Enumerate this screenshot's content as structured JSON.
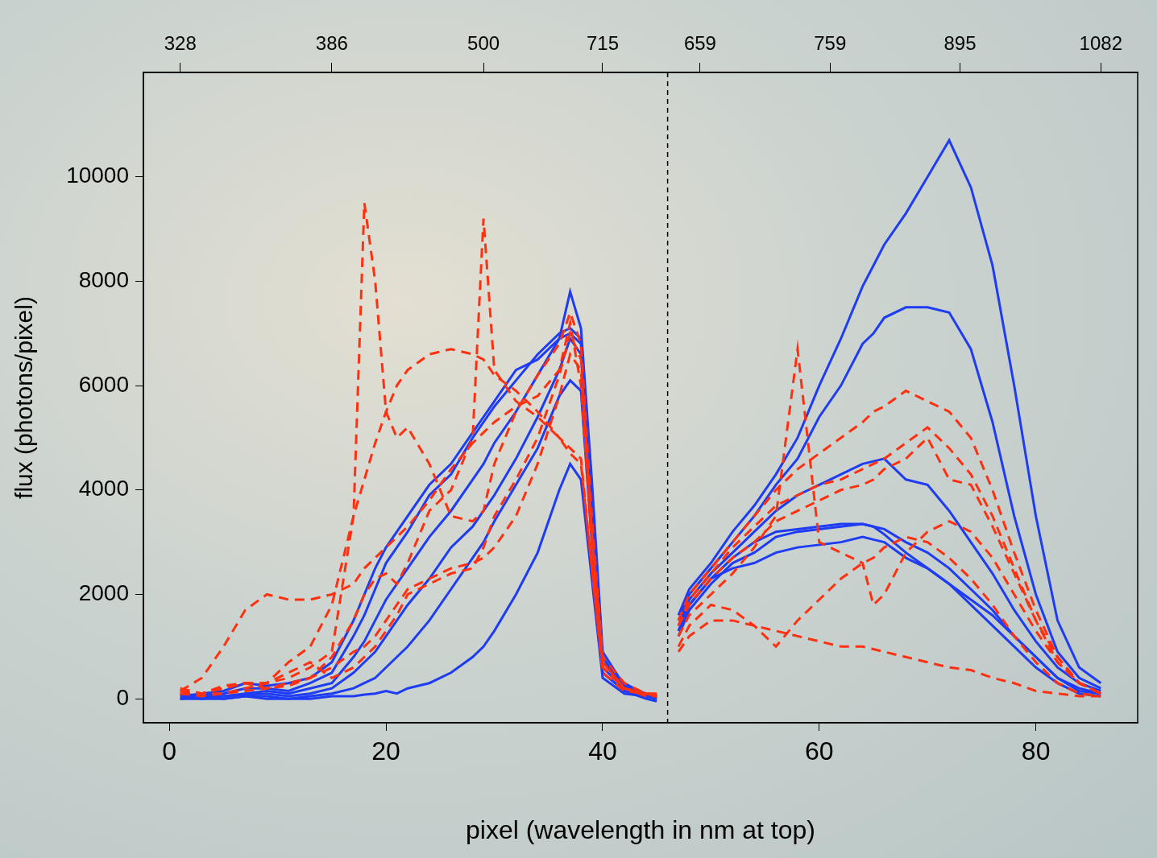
{
  "chart_data": {
    "type": "line",
    "x_label": "pixel (wavelength in nm at top)",
    "y_label": "flux (photons/pixel)",
    "x": [
      1,
      3,
      5,
      7,
      9,
      11,
      13,
      15,
      17,
      18,
      19,
      20,
      21,
      22,
      24,
      26,
      28,
      29,
      30,
      32,
      34,
      36,
      37,
      38,
      39,
      40,
      42,
      44,
      45,
      46,
      47,
      48,
      50,
      52,
      54,
      56,
      58,
      60,
      62,
      64,
      65,
      66,
      68,
      70,
      72,
      74,
      76,
      78,
      80,
      82,
      84,
      86
    ],
    "xlim": [
      -2.4,
      89.4
    ],
    "xticks": [
      0,
      20,
      40,
      60,
      80
    ],
    "x2lim": [
      -2.4,
      89.4
    ],
    "x2ticks": [
      {
        "value": 1,
        "label": "328"
      },
      {
        "value": 15,
        "label": "386"
      },
      {
        "value": 29,
        "label": "500"
      },
      {
        "value": 40,
        "label": "715"
      },
      {
        "value": 49,
        "label": "659"
      },
      {
        "value": 61,
        "label": "759"
      },
      {
        "value": 73,
        "label": "895"
      },
      {
        "value": 86,
        "label": "1082"
      }
    ],
    "ylim": [
      -460,
      12000
    ],
    "yticks": [
      0,
      2000,
      4000,
      6000,
      8000,
      10000
    ],
    "grid": false,
    "vline": 46,
    "series": [
      {
        "color": "#ff3010",
        "line_style": "dashed",
        "values": [
          100,
          100,
          200,
          300,
          300,
          400,
          600,
          900,
          3500,
          9500,
          8000,
          5500,
          5000,
          5200,
          4500,
          3500,
          3400,
          3600,
          4500,
          5500,
          6200,
          6800,
          7400,
          6800,
          3500,
          800,
          300,
          100,
          100,
          null,
          1200,
          1600,
          2000,
          2400,
          2900,
          3500,
          6700,
          3000,
          2800,
          2600,
          1800,
          2000,
          2800,
          3200,
          3400,
          3200,
          2700,
          2000,
          1300,
          700,
          300,
          100
        ]
      },
      {
        "color": "#ff3010",
        "line_style": "dashed",
        "values": [
          200,
          100,
          250,
          300,
          200,
          250,
          400,
          800,
          1500,
          2000,
          2300,
          2400,
          2200,
          2600,
          3600,
          4000,
          5000,
          9200,
          6300,
          5700,
          5400,
          5000,
          4700,
          4500,
          2500,
          500,
          150,
          100,
          50,
          null,
          1500,
          2000,
          2500,
          3000,
          3500,
          4000,
          4400,
          4700,
          5000,
          5300,
          5500,
          5600,
          5900,
          5700,
          5500,
          5000,
          4000,
          2800,
          1700,
          800,
          300,
          100
        ]
      },
      {
        "color": "#ff3010",
        "line_style": "dashed",
        "values": [
          100,
          100,
          200,
          300,
          300,
          700,
          1000,
          1800,
          3500,
          4200,
          4900,
          5500,
          6000,
          6300,
          6600,
          6700,
          6600,
          6500,
          6200,
          5900,
          5500,
          5000,
          4800,
          4600,
          2500,
          600,
          200,
          100,
          50,
          null,
          1400,
          1900,
          2400,
          2900,
          3300,
          3700,
          3900,
          4100,
          4200,
          4400,
          4500,
          4600,
          4900,
          5200,
          4800,
          4300,
          3500,
          2500,
          1500,
          700,
          300,
          100
        ]
      },
      {
        "color": "#ff3010",
        "line_style": "dashed",
        "values": [
          150,
          400,
          1000,
          1700,
          2000,
          1900,
          1900,
          2000,
          2200,
          2500,
          2700,
          2900,
          3100,
          3300,
          3800,
          4400,
          4900,
          5100,
          5300,
          5600,
          5800,
          6300,
          7200,
          6000,
          3000,
          700,
          200,
          100,
          80,
          null,
          1400,
          1800,
          2300,
          2700,
          3000,
          3400,
          3600,
          3800,
          4000,
          4100,
          4200,
          4400,
          4600,
          5000,
          4200,
          4100,
          3300,
          2400,
          1500,
          800,
          300,
          100
        ]
      },
      {
        "color": "#ff3010",
        "line_style": "dashed",
        "values": [
          100,
          50,
          100,
          200,
          300,
          500,
          700,
          400,
          600,
          800,
          1000,
          1300,
          1600,
          2000,
          2200,
          2400,
          2500,
          2900,
          3500,
          4200,
          5000,
          6200,
          7000,
          6500,
          3200,
          700,
          200,
          80,
          50,
          null,
          900,
          1200,
          1500,
          1500,
          1400,
          1300,
          1200,
          1100,
          1000,
          1000,
          950,
          900,
          800,
          700,
          600,
          550,
          400,
          300,
          150,
          100,
          50,
          50
        ]
      },
      {
        "color": "#ff3010",
        "line_style": "dashed",
        "values": [
          150,
          100,
          100,
          150,
          200,
          300,
          400,
          600,
          900,
          1000,
          1200,
          1500,
          1800,
          2100,
          2300,
          2500,
          2600,
          2700,
          2900,
          3500,
          4500,
          5800,
          6600,
          6300,
          3000,
          600,
          200,
          50,
          50,
          null,
          1000,
          1400,
          1800,
          1700,
          1400,
          1000,
          1500,
          1900,
          2300,
          2600,
          2700,
          2900,
          3100,
          3000,
          2700,
          2300,
          1800,
          1200,
          700,
          300,
          100,
          50
        ]
      },
      {
        "color": "#1f3cf5",
        "line_style": "solid",
        "values": [
          50,
          100,
          150,
          300,
          250,
          300,
          400,
          700,
          1500,
          2000,
          2500,
          2900,
          3200,
          3500,
          4100,
          4500,
          5100,
          5400,
          5700,
          6300,
          6500,
          6900,
          7800,
          7100,
          4200,
          900,
          250,
          100,
          80,
          null,
          1600,
          2100,
          2600,
          3200,
          3700,
          4300,
          5000,
          6000,
          6900,
          7900,
          8300,
          8700,
          9300,
          10000,
          10700,
          9800,
          8300,
          6000,
          3500,
          1500,
          600,
          300
        ]
      },
      {
        "color": "#1f3cf5",
        "line_style": "solid",
        "values": [
          80,
          50,
          100,
          200,
          200,
          150,
          300,
          500,
          1200,
          1600,
          2100,
          2600,
          2900,
          3200,
          3900,
          4300,
          5000,
          5300,
          5600,
          6100,
          6600,
          7000,
          7100,
          6900,
          4000,
          800,
          200,
          50,
          30,
          null,
          1500,
          2000,
          2500,
          3000,
          3500,
          4100,
          4600,
          5400,
          6000,
          6800,
          7000,
          7300,
          7500,
          7500,
          7400,
          6700,
          5300,
          3500,
          2000,
          900,
          400,
          200
        ]
      },
      {
        "color": "#1f3cf5",
        "line_style": "solid",
        "values": [
          0,
          80,
          50,
          100,
          150,
          100,
          200,
          300,
          800,
          1100,
          1500,
          1900,
          2200,
          2500,
          3100,
          3600,
          4200,
          4500,
          4900,
          5500,
          6200,
          6900,
          7000,
          6800,
          3800,
          700,
          300,
          80,
          50,
          null,
          1400,
          1900,
          2400,
          2800,
          3200,
          3600,
          3900,
          4100,
          4300,
          4500,
          4550,
          4600,
          4200,
          4100,
          3600,
          3000,
          2400,
          1700,
          1100,
          600,
          300,
          150
        ]
      },
      {
        "color": "#1f3cf5",
        "line_style": "solid",
        "values": [
          50,
          0,
          50,
          80,
          100,
          50,
          100,
          200,
          500,
          700,
          900,
          1200,
          1500,
          1800,
          2300,
          2900,
          3300,
          3600,
          3900,
          4600,
          5400,
          6300,
          6900,
          6600,
          3500,
          600,
          200,
          50,
          0,
          null,
          1300,
          1800,
          2300,
          2700,
          3000,
          3200,
          3250,
          3300,
          3350,
          3350,
          3300,
          3250,
          3000,
          2800,
          2500,
          2100,
          1700,
          1200,
          800,
          400,
          200,
          100
        ]
      },
      {
        "color": "#1f3cf5",
        "line_style": "solid",
        "values": [
          0,
          50,
          0,
          50,
          50,
          0,
          50,
          100,
          200,
          300,
          400,
          600,
          800,
          1000,
          1500,
          2100,
          2700,
          3000,
          3400,
          4100,
          4800,
          5800,
          6100,
          5900,
          3000,
          500,
          150,
          0,
          -50,
          null,
          1200,
          1700,
          2200,
          2600,
          2800,
          3100,
          3200,
          3250,
          3300,
          3350,
          3300,
          3150,
          2800,
          2500,
          2200,
          1900,
          1600,
          1200,
          800,
          400,
          150,
          100
        ]
      },
      {
        "color": "#1f3cf5",
        "line_style": "solid",
        "values": [
          0,
          0,
          0,
          50,
          0,
          0,
          0,
          50,
          50,
          80,
          100,
          150,
          100,
          200,
          300,
          500,
          800,
          1000,
          1300,
          2000,
          2800,
          4000,
          4500,
          4200,
          2300,
          400,
          100,
          50,
          0,
          null,
          1300,
          1800,
          2300,
          2500,
          2600,
          2800,
          2900,
          2950,
          3000,
          3100,
          3050,
          3000,
          2700,
          2500,
          2200,
          1800,
          1400,
          1000,
          600,
          300,
          100,
          50
        ]
      }
    ]
  }
}
